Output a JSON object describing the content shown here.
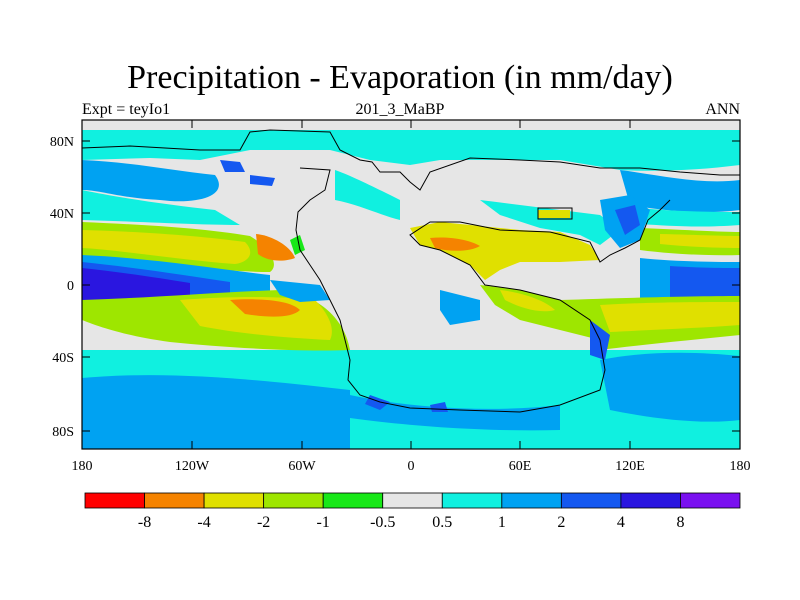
{
  "title": "Precipitation - Evaporation (in mm/day)",
  "subtitle_left": "Expt = teyIo1",
  "subtitle_center": "201_3_MaBP",
  "subtitle_right": "ANN",
  "chart_data": {
    "type": "heatmap",
    "variable": "Precipitation - Evaporation",
    "units": "mm/day",
    "experiment": "teyIo1",
    "period": "201_3_MaBP",
    "season": "ANN",
    "x_axis": {
      "range": [
        -180,
        180
      ],
      "tick_values": [
        -180,
        -120,
        -60,
        0,
        60,
        120,
        180
      ],
      "tick_labels": [
        "180",
        "120W",
        "60W",
        "0",
        "60E",
        "120E",
        "180"
      ]
    },
    "y_axis": {
      "range": [
        -90,
        90
      ],
      "tick_values": [
        80,
        40,
        0,
        -40,
        -80
      ],
      "tick_labels": [
        "80N",
        "40N",
        "0",
        "40S",
        "80S"
      ]
    },
    "colorbar": {
      "orientation": "horizontal",
      "level_labels": [
        "-8",
        "-4",
        "-2",
        "-1",
        "-0.5",
        "0.5",
        "1",
        "2",
        "4",
        "8"
      ],
      "levels": [
        -8,
        -4,
        -2,
        -1,
        -0.5,
        0.5,
        1,
        2,
        4,
        8
      ],
      "colors": [
        "#ff0000",
        "#f58300",
        "#e0e000",
        "#9ee600",
        "#18e818",
        "#e6e6e6",
        "#10f0e0",
        "#00a2f2",
        "#1458f0",
        "#2a16e0",
        "#7a10f0"
      ]
    }
  }
}
